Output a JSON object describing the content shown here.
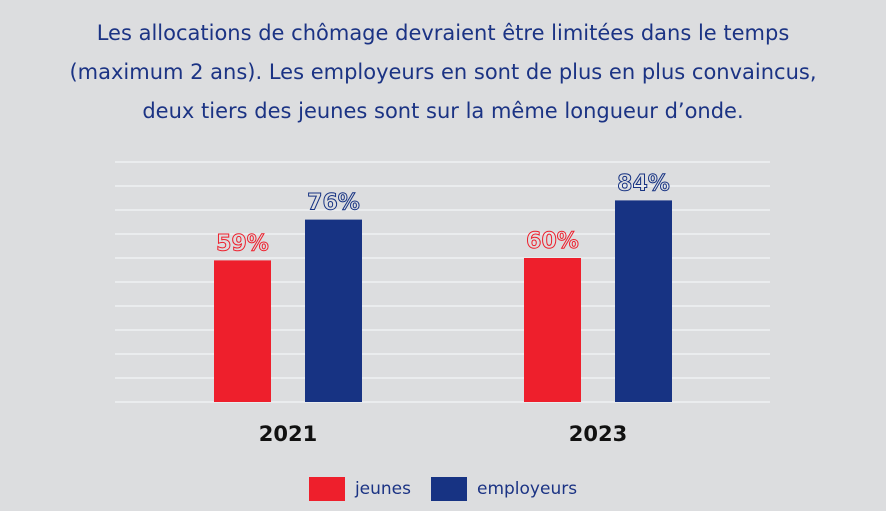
{
  "title": [
    "Les allocations de chômage devraient être limitées dans le temps",
    "(maximum 2 ans). Les employeurs en sont de plus en plus convaincus,",
    "deux tiers des jeunes sont sur la même longueur d’onde."
  ],
  "colors": {
    "jeunes": "#ee1f2c",
    "employeurs": "#173383",
    "grid": "#eef2f4"
  },
  "chart_data": {
    "type": "bar",
    "title": "Les allocations de chômage devraient être limitées dans le temps (maximum 2 ans). Les employeurs en sont de plus en plus convaincus, deux tiers des jeunes sont sur la même longueur d’onde.",
    "categories": [
      "2021",
      "2023"
    ],
    "series": [
      {
        "name": "jeunes",
        "values": [
          59,
          60
        ],
        "labels": [
          "59%",
          "60%"
        ]
      },
      {
        "name": "employeurs",
        "values": [
          76,
          84
        ],
        "labels": [
          "76%",
          "84%"
        ]
      }
    ],
    "ylim": [
      0,
      100
    ],
    "grid": true,
    "legend": "bottom-center",
    "xlabel": "",
    "ylabel": ""
  }
}
